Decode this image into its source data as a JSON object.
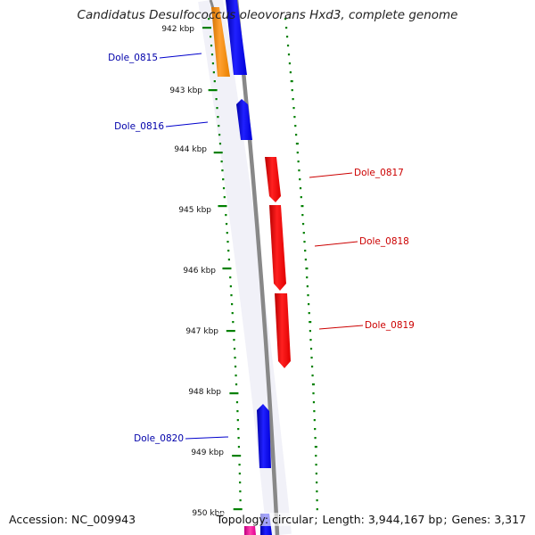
{
  "header": {
    "title": "Candidatus Desulfococcus oleovorans Hxd3, complete genome"
  },
  "footer": {
    "accession": "Accession: NC_009943",
    "topology": "Topology: circular",
    "length": "Length: 3,944,167 bp",
    "genes": "Genes: 3,317"
  },
  "colors": {
    "forward_cds": "#ff0000",
    "reverse_cds": "#0000ff",
    "rna": "#ff8c00",
    "backbone": "#888888",
    "ticks": "#008000",
    "label_forward": "#cc0000",
    "label_reverse": "#0000aa"
  },
  "scale": {
    "unit": "kbp",
    "ticks": [
      "942 kbp",
      "943 kbp",
      "944 kbp",
      "945 kbp",
      "946 kbp",
      "947 kbp",
      "948 kbp",
      "949 kbp",
      "950 kbp"
    ]
  },
  "genes": [
    {
      "label": "Dole_0815",
      "strand": "reverse"
    },
    {
      "label": "Dole_0816",
      "strand": "reverse"
    },
    {
      "label": "Dole_0817",
      "strand": "forward"
    },
    {
      "label": "Dole_0818",
      "strand": "forward"
    },
    {
      "label": "Dole_0819",
      "strand": "forward"
    },
    {
      "label": "Dole_0820",
      "strand": "reverse"
    }
  ]
}
